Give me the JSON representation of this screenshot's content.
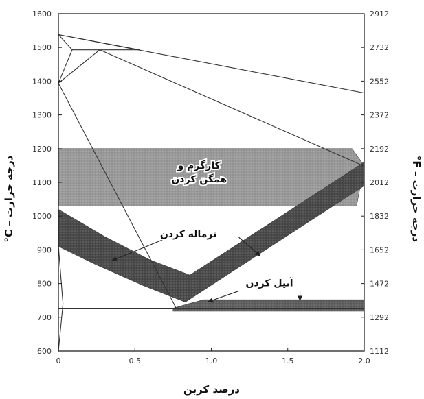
{
  "chart_data": {
    "type": "area",
    "title": "",
    "xlabel": "درصد کربن",
    "ylabel_left": "درجه حرارت – C°",
    "ylabel_right": "درجه حرارت – F°",
    "xlim": [
      0,
      2.0
    ],
    "ylim": [
      600,
      1600
    ],
    "x_ticks": [
      0,
      0.5,
      1.0,
      1.5,
      2.0
    ],
    "x_tick_labels": [
      "0",
      "0.5",
      "1.0",
      "1.5",
      "2.0"
    ],
    "y_ticks_left": [
      600,
      700,
      800,
      900,
      1000,
      1100,
      1200,
      1300,
      1400,
      1500,
      1600
    ],
    "y_ticks_right": [
      1112,
      1292,
      1472,
      1652,
      1832,
      2012,
      2192,
      2372,
      2552,
      2732,
      2912
    ],
    "grid": false,
    "regions": [
      {
        "name": "کارگرم و همگن کردن",
        "label_lines": [
          "کارگرم و",
          "همگن کردن"
        ],
        "label_at": {
          "x": 0.92,
          "y": 1130
        },
        "polygon": [
          [
            0,
            1200
          ],
          [
            1.92,
            1200
          ],
          [
            2.0,
            1150
          ],
          [
            1.95,
            1030
          ],
          [
            0,
            1030
          ]
        ],
        "fill": "#9a9a9a"
      },
      {
        "name": "نرماله کردن",
        "label_lines": [
          "نرماله کردن"
        ],
        "label_at": {
          "x": 0.85,
          "y": 948
        },
        "polygon": [
          [
            0,
            1020
          ],
          [
            0.3,
            940
          ],
          [
            0.6,
            870
          ],
          [
            0.86,
            825
          ],
          [
            2.0,
            1160
          ],
          [
            2.0,
            1090
          ],
          [
            0.83,
            745
          ],
          [
            0.55,
            795
          ],
          [
            0.25,
            855
          ],
          [
            0,
            910
          ]
        ],
        "fill": "#4a4a4a",
        "arrows": [
          {
            "from": {
              "x": 0.72,
              "y": 937
            },
            "to": {
              "x": 0.35,
              "y": 868
            }
          },
          {
            "from": {
              "x": 1.18,
              "y": 937
            },
            "to": {
              "x": 1.32,
              "y": 882
            }
          }
        ]
      },
      {
        "name": "آنیل کردن",
        "label_lines": [
          "آنیل کردن"
        ],
        "label_at": {
          "x": 1.38,
          "y": 802
        },
        "polygon": [
          [
            0.75,
            727
          ],
          [
            0.85,
            740
          ],
          [
            0.95,
            752
          ],
          [
            2.0,
            752
          ],
          [
            2.0,
            718
          ],
          [
            0.75,
            718
          ]
        ],
        "fill": "#5e5e5e",
        "arrows": [
          {
            "from": {
              "x": 1.58,
              "y": 778
            },
            "to": {
              "x": 1.58,
              "y": 750
            }
          },
          {
            "from": {
              "x": 1.18,
              "y": 778
            },
            "to": {
              "x": 0.98,
              "y": 746
            }
          }
        ]
      }
    ],
    "phase_lines": [
      {
        "points": [
          [
            0,
            1538
          ],
          [
            2.0,
            1365
          ]
        ]
      },
      {
        "points": [
          [
            0,
            1538
          ],
          [
            0.09,
            1493
          ],
          [
            0,
            1394
          ]
        ]
      },
      {
        "points": [
          [
            0,
            1538
          ],
          [
            0.53,
            1493
          ]
        ]
      },
      {
        "points": [
          [
            0.09,
            1493
          ],
          [
            0.53,
            1493
          ]
        ]
      },
      {
        "points": [
          [
            0,
            1394
          ],
          [
            0.27,
            1493
          ],
          [
            2.0,
            1148
          ]
        ]
      },
      {
        "points": [
          [
            0,
            1394
          ],
          [
            0.77,
            727
          ]
        ]
      },
      {
        "points": [
          [
            0,
            727
          ],
          [
            2.0,
            727
          ]
        ]
      },
      {
        "points": [
          [
            0,
            912
          ],
          [
            0.03,
            740
          ],
          [
            0,
            600
          ]
        ]
      }
    ]
  }
}
